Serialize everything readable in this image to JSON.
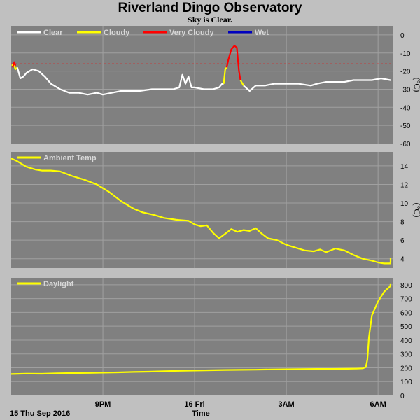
{
  "header": {
    "title": "Riverland Dingo Observatory",
    "subtitle": "Sky is Clear."
  },
  "footer": {
    "date_label": "15 Thu Sep 2016",
    "time_label": "Time"
  },
  "colors": {
    "plot_bg": "#808080",
    "grid": "#a0a0a0",
    "clear": "#ffffff",
    "cloudy": "#ffff00",
    "very_cloudy": "#ff0000",
    "wet": "#0000c0",
    "threshold": "#ff0000",
    "series": "#ffff00"
  },
  "chart_data": [
    {
      "type": "line",
      "name": "sky-temperature",
      "legend": [
        "Clear",
        "Cloudy",
        "Very Cloudy",
        "Wet"
      ],
      "yunit": "(°C)",
      "ylim": [
        -60,
        5
      ],
      "yticks": [
        0,
        -10,
        -20,
        -30,
        -40,
        -50,
        -60
      ],
      "xlim": [
        18.0,
        30.5
      ],
      "xticks": [
        {
          "x": 21,
          "label": "9PM"
        },
        {
          "x": 24,
          "label": "16 Fri"
        },
        {
          "x": 27,
          "label": "3AM"
        },
        {
          "x": 30,
          "label": "6AM"
        }
      ],
      "threshold": -16,
      "series": [
        {
          "name": "Cloudy",
          "color_key": "cloudy",
          "points": [
            [
              18.02,
              -17
            ],
            [
              18.08,
              -16
            ],
            [
              18.14,
              -19
            ],
            [
              18.2,
              -18
            ]
          ]
        },
        {
          "name": "Very Cloudy",
          "color_key": "very_cloudy",
          "points": [
            [
              18.05,
              -18
            ],
            [
              18.1,
              -15
            ],
            [
              18.14,
              -17
            ]
          ]
        },
        {
          "name": "Clear",
          "color_key": "clear",
          "points": [
            [
              18.2,
              -18
            ],
            [
              18.3,
              -24
            ],
            [
              18.4,
              -23
            ],
            [
              18.5,
              -21
            ],
            [
              18.7,
              -19
            ],
            [
              18.9,
              -20
            ],
            [
              19.1,
              -23
            ],
            [
              19.3,
              -27
            ],
            [
              19.6,
              -30
            ],
            [
              19.9,
              -32
            ],
            [
              20.2,
              -32
            ],
            [
              20.5,
              -33
            ],
            [
              20.8,
              -32
            ],
            [
              21.0,
              -33
            ],
            [
              21.3,
              -32
            ],
            [
              21.6,
              -31
            ],
            [
              21.9,
              -31
            ],
            [
              22.2,
              -31
            ],
            [
              22.6,
              -30
            ],
            [
              23.0,
              -30
            ],
            [
              23.3,
              -30
            ],
            [
              23.5,
              -29
            ],
            [
              23.6,
              -22
            ],
            [
              23.7,
              -27
            ],
            [
              23.8,
              -23
            ],
            [
              23.9,
              -29
            ],
            [
              24.0,
              -29
            ],
            [
              24.3,
              -30
            ],
            [
              24.6,
              -30
            ],
            [
              24.8,
              -29
            ],
            [
              24.9,
              -27
            ],
            [
              24.95,
              -27
            ]
          ]
        },
        {
          "name": "Cloudy",
          "color_key": "cloudy",
          "points": [
            [
              24.95,
              -27
            ],
            [
              25.0,
              -19
            ],
            [
              25.05,
              -18
            ]
          ]
        },
        {
          "name": "Very Cloudy",
          "color_key": "very_cloudy",
          "points": [
            [
              25.05,
              -18
            ],
            [
              25.1,
              -14
            ],
            [
              25.2,
              -8
            ],
            [
              25.3,
              -6
            ],
            [
              25.38,
              -7
            ],
            [
              25.45,
              -20
            ],
            [
              25.5,
              -25
            ]
          ]
        },
        {
          "name": "Cloudy",
          "color_key": "cloudy",
          "points": [
            [
              25.5,
              -25
            ],
            [
              25.6,
              -28
            ]
          ]
        },
        {
          "name": "Clear",
          "color_key": "clear",
          "points": [
            [
              25.6,
              -28
            ],
            [
              25.8,
              -31
            ],
            [
              26.0,
              -28
            ],
            [
              26.3,
              -28
            ],
            [
              26.6,
              -27
            ],
            [
              27.0,
              -27
            ],
            [
              27.4,
              -27
            ],
            [
              27.8,
              -28
            ],
            [
              28.0,
              -27
            ],
            [
              28.3,
              -26
            ],
            [
              28.6,
              -26
            ],
            [
              28.9,
              -26
            ],
            [
              29.2,
              -25
            ],
            [
              29.5,
              -25
            ],
            [
              29.8,
              -25
            ],
            [
              30.1,
              -24
            ],
            [
              30.4,
              -25
            ],
            [
              30.5,
              -25
            ]
          ]
        }
      ]
    },
    {
      "type": "line",
      "name": "ambient-temperature",
      "legend": [
        "Ambient Temp"
      ],
      "yunit": "(°C)",
      "ylim": [
        3,
        15.5
      ],
      "yticks": [
        4,
        6,
        8,
        10,
        12,
        14
      ],
      "xlim": [
        18.0,
        30.5
      ],
      "xticks": [
        {
          "x": 21,
          "label": "9PM"
        },
        {
          "x": 24,
          "label": "16 Fri"
        },
        {
          "x": 27,
          "label": "3AM"
        },
        {
          "x": 30,
          "label": "6AM"
        }
      ],
      "series": [
        {
          "name": "Ambient Temp",
          "color_key": "series",
          "points": [
            [
              18.0,
              14.8
            ],
            [
              18.2,
              14.5
            ],
            [
              18.5,
              13.9
            ],
            [
              18.8,
              13.6
            ],
            [
              19.0,
              13.5
            ],
            [
              19.3,
              13.5
            ],
            [
              19.6,
              13.4
            ],
            [
              20.0,
              12.9
            ],
            [
              20.4,
              12.5
            ],
            [
              20.8,
              12.0
            ],
            [
              21.2,
              11.2
            ],
            [
              21.6,
              10.2
            ],
            [
              22.0,
              9.4
            ],
            [
              22.3,
              9.0
            ],
            [
              22.7,
              8.7
            ],
            [
              23.0,
              8.4
            ],
            [
              23.4,
              8.2
            ],
            [
              23.8,
              8.1
            ],
            [
              24.0,
              7.7
            ],
            [
              24.2,
              7.5
            ],
            [
              24.4,
              7.6
            ],
            [
              24.6,
              6.8
            ],
            [
              24.8,
              6.2
            ],
            [
              25.0,
              6.7
            ],
            [
              25.2,
              7.2
            ],
            [
              25.4,
              6.9
            ],
            [
              25.6,
              7.1
            ],
            [
              25.8,
              7.0
            ],
            [
              26.0,
              7.3
            ],
            [
              26.2,
              6.7
            ],
            [
              26.4,
              6.2
            ],
            [
              26.7,
              6.0
            ],
            [
              27.0,
              5.5
            ],
            [
              27.3,
              5.2
            ],
            [
              27.6,
              4.9
            ],
            [
              27.9,
              4.8
            ],
            [
              28.1,
              5.0
            ],
            [
              28.3,
              4.7
            ],
            [
              28.6,
              5.1
            ],
            [
              28.9,
              4.9
            ],
            [
              29.2,
              4.4
            ],
            [
              29.5,
              4.0
            ],
            [
              29.8,
              3.8
            ],
            [
              30.0,
              3.6
            ],
            [
              30.2,
              3.5
            ],
            [
              30.4,
              3.5
            ],
            [
              30.5,
              3.7
            ],
            [
              30.6,
              4.1
            ]
          ]
        }
      ]
    },
    {
      "type": "line",
      "name": "daylight",
      "legend": [
        "Daylight"
      ],
      "ylim": [
        0,
        850
      ],
      "yticks": [
        0,
        100,
        200,
        300,
        400,
        500,
        600,
        700,
        800
      ],
      "xlim": [
        18.0,
        30.5
      ],
      "xticks": [
        {
          "x": 21,
          "label": "9PM"
        },
        {
          "x": 24,
          "label": "16 Fri"
        },
        {
          "x": 27,
          "label": "3AM"
        },
        {
          "x": 30,
          "label": "6AM"
        }
      ],
      "series": [
        {
          "name": "Daylight",
          "color_key": "series",
          "points": [
            [
              18.0,
              155
            ],
            [
              18.5,
              158
            ],
            [
              19.0,
              157
            ],
            [
              19.5,
              160
            ],
            [
              20.0,
              162
            ],
            [
              20.5,
              163
            ],
            [
              21.0,
              165
            ],
            [
              21.5,
              167
            ],
            [
              22.0,
              170
            ],
            [
              22.5,
              172
            ],
            [
              23.0,
              175
            ],
            [
              23.5,
              178
            ],
            [
              24.0,
              180
            ],
            [
              24.5,
              182
            ],
            [
              25.0,
              184
            ],
            [
              25.5,
              185
            ],
            [
              26.0,
              186
            ],
            [
              26.5,
              188
            ],
            [
              27.0,
              189
            ],
            [
              27.5,
              190
            ],
            [
              28.0,
              192
            ],
            [
              28.5,
              192
            ],
            [
              29.0,
              193
            ],
            [
              29.3,
              194
            ],
            [
              29.5,
              196
            ],
            [
              29.6,
              205
            ],
            [
              29.65,
              260
            ],
            [
              29.7,
              420
            ],
            [
              29.8,
              580
            ],
            [
              30.0,
              680
            ],
            [
              30.2,
              750
            ],
            [
              30.4,
              790
            ],
            [
              30.6,
              805
            ]
          ]
        }
      ]
    }
  ]
}
